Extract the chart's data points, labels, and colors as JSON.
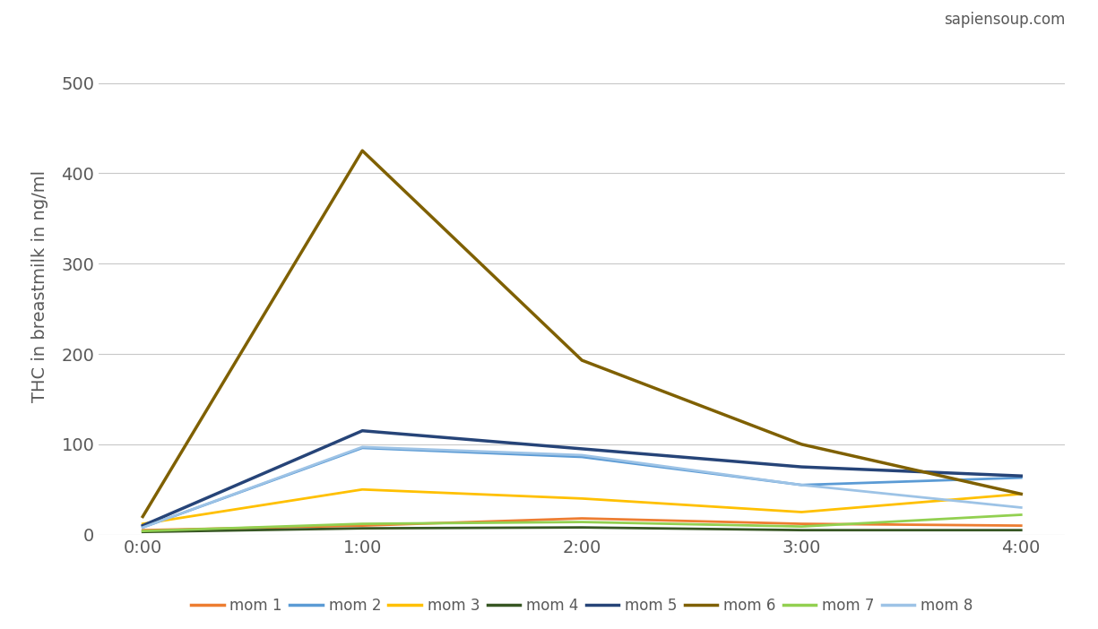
{
  "x_indices": [
    0,
    1,
    2,
    3,
    4
  ],
  "x_labels": [
    "0:00",
    "1:00",
    "2:00",
    "3:00",
    "4:00"
  ],
  "series": [
    {
      "name": "mom 1",
      "values": [
        5,
        10,
        18,
        12,
        10
      ],
      "color": "#ED7D31",
      "linewidth": 2.0
    },
    {
      "name": "mom 2",
      "values": [
        8,
        96,
        86,
        55,
        63
      ],
      "color": "#5B9BD5",
      "linewidth": 2.0
    },
    {
      "name": "mom 3",
      "values": [
        12,
        50,
        40,
        25,
        45
      ],
      "color": "#FFC000",
      "linewidth": 2.0
    },
    {
      "name": "mom 4",
      "values": [
        3,
        7,
        8,
        5,
        5
      ],
      "color": "#375623",
      "linewidth": 2.0
    },
    {
      "name": "mom 5",
      "values": [
        10,
        115,
        95,
        75,
        65
      ],
      "color": "#264478",
      "linewidth": 2.5
    },
    {
      "name": "mom 6",
      "values": [
        20,
        425,
        193,
        100,
        45
      ],
      "color": "#7F6000",
      "linewidth": 2.5
    },
    {
      "name": "mom 7",
      "values": [
        4,
        12,
        14,
        9,
        22
      ],
      "color": "#92D050",
      "linewidth": 2.0
    },
    {
      "name": "mom 8",
      "values": [
        8,
        97,
        88,
        55,
        30
      ],
      "color": "#9DC3E6",
      "linewidth": 2.0
    }
  ],
  "ylabel": "THC in breastmilk in ng/ml",
  "ylim": [
    0,
    550
  ],
  "yticks": [
    0,
    100,
    200,
    300,
    400,
    500
  ],
  "background_color": "#FFFFFF",
  "grid_color": "#C8C8C8",
  "watermark": "sapiensoup.com",
  "axis_color": "#595959",
  "tick_fontsize": 14,
  "ylabel_fontsize": 14,
  "watermark_fontsize": 12
}
